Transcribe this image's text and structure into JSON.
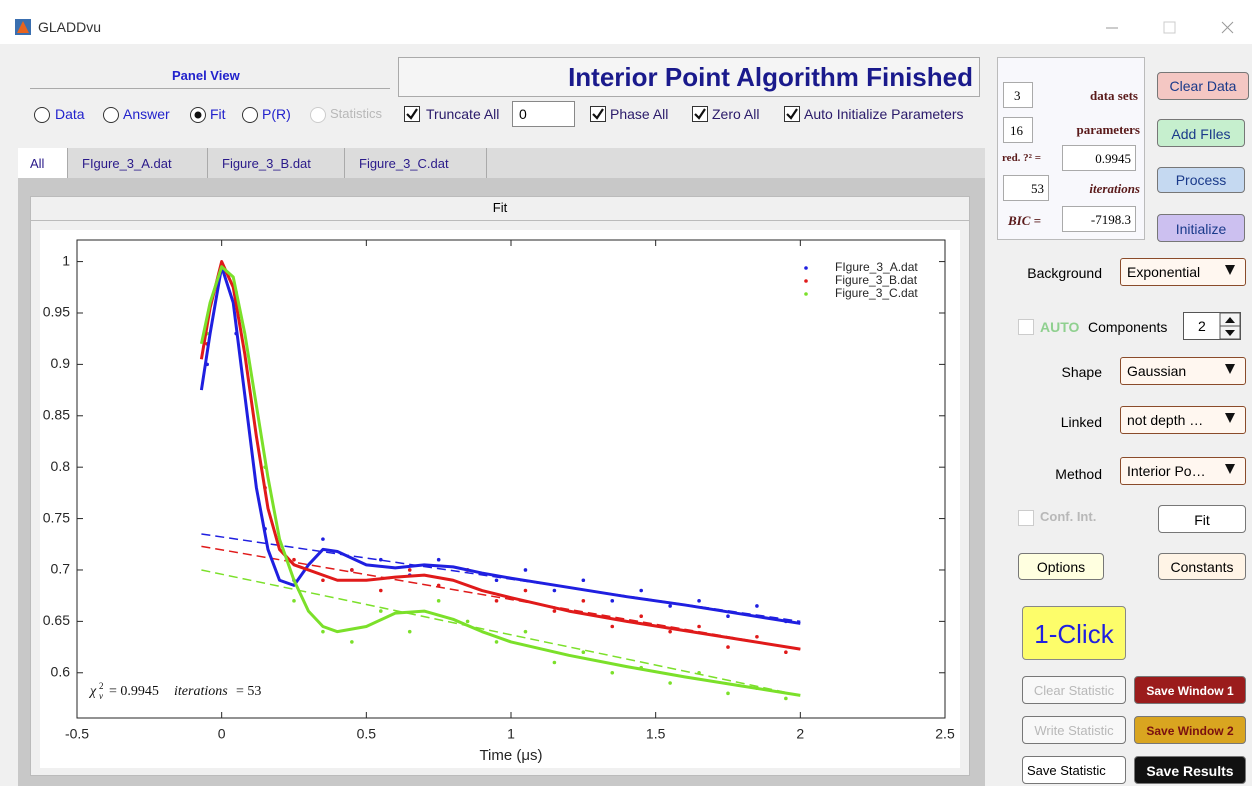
{
  "window": {
    "title": "GLADDvu"
  },
  "panel_view": {
    "title": "Panel View",
    "options": [
      {
        "label": "Data",
        "selected": false,
        "enabled": true
      },
      {
        "label": "Answer",
        "selected": false,
        "enabled": true
      },
      {
        "label": "Fit",
        "selected": true,
        "enabled": true
      },
      {
        "label": "P(R)",
        "selected": false,
        "enabled": true
      },
      {
        "label": "Statistics",
        "selected": false,
        "enabled": false
      }
    ]
  },
  "status": "Interior Point Algorithm Finished",
  "options_row": {
    "truncate": {
      "label": "Truncate All",
      "checked": true
    },
    "truncate_value": "0",
    "phase": {
      "label": "Phase All",
      "checked": true
    },
    "zero": {
      "label": "Zero All",
      "checked": true
    },
    "auto_init": {
      "label": "Auto Initialize Parameters",
      "checked": true
    }
  },
  "tabs": {
    "items": [
      "All",
      "FIgure_3_A.dat",
      "Figure_3_B.dat",
      "Figure_3_C.dat"
    ],
    "active": 0
  },
  "panel_title": "Fit",
  "stats": {
    "data_sets": {
      "value": "3",
      "label": "data sets"
    },
    "parameters": {
      "value": "16",
      "label": "parameters"
    },
    "red_chi2": {
      "label": "red. ?² =",
      "value": "0.9945"
    },
    "iterations": {
      "value": "53",
      "label": "iterations"
    },
    "bic": {
      "label": "BIC =",
      "value": "-7198.3"
    }
  },
  "buttons": {
    "clear_data": {
      "label": "Clear Data",
      "enabled": true
    },
    "add_files": {
      "label": "Add FIles",
      "enabled": true
    },
    "process": {
      "label": "Process",
      "enabled": true
    },
    "initialize": {
      "label": "Initialize",
      "enabled": true
    },
    "fit": {
      "label": "Fit",
      "enabled": true
    },
    "options": {
      "label": "Options",
      "enabled": true
    },
    "constants": {
      "label": "Constants",
      "enabled": true
    },
    "one_click": {
      "label": "1-Click",
      "enabled": true
    },
    "clear_statistic": {
      "label": "Clear Statistic",
      "enabled": false
    },
    "save_window_1": {
      "label": "Save Window 1",
      "enabled": true
    },
    "write_statistic": {
      "label": "Write Statistic",
      "enabled": false
    },
    "save_window_2": {
      "label": "Save Window 2",
      "enabled": true
    },
    "save_statistic": {
      "label": "Save Statistic",
      "enabled": true
    },
    "save_results": {
      "label": "Save Results",
      "enabled": true
    }
  },
  "controls": {
    "background": {
      "label": "Background",
      "value": "Exponential"
    },
    "auto": {
      "label": "AUTO",
      "checked": false
    },
    "components": {
      "label": "Components",
      "value": 2
    },
    "shape": {
      "label": "Shape",
      "value": "Gaussian"
    },
    "linked": {
      "label": "Linked",
      "value": "not depth …"
    },
    "method": {
      "label": "Method",
      "value": "Interior Po…"
    },
    "conf_int": {
      "label": "Conf. Int.",
      "checked": false
    }
  },
  "chart_data": {
    "type": "line",
    "xlabel": "Time (μs)",
    "legend": "upper right",
    "grid": false,
    "xlim": [
      -0.5,
      2.5
    ],
    "xticks": [
      -0.5,
      0,
      0.5,
      1,
      1.5,
      2,
      2.5
    ],
    "ylim": [
      0.556,
      1.021
    ],
    "yticks": [
      0.6,
      0.65,
      0.7,
      0.75,
      0.8,
      0.85,
      0.9,
      0.95,
      1
    ],
    "x": [
      -0.05,
      0.05,
      0.15,
      0.25,
      0.35,
      0.45,
      0.55,
      0.65,
      0.75,
      0.85,
      0.95,
      1.05,
      1.15,
      1.25,
      1.35,
      1.45,
      1.55,
      1.65,
      1.75,
      1.85,
      1.95
    ],
    "fit_x": [
      -0.07,
      -0.04,
      0,
      0.04,
      0.08,
      0.12,
      0.16,
      0.2,
      0.25,
      0.3,
      0.35,
      0.4,
      0.5,
      0.6,
      0.7,
      0.8,
      0.9,
      1.0,
      1.2,
      1.4,
      1.6,
      1.8,
      2.0
    ],
    "baseline_x": [
      -0.07,
      2.0
    ],
    "series": [
      {
        "name": "FIgure_3_A.dat",
        "color": "#1f1fe0",
        "values": [
          0.9,
          0.93,
          0.74,
          0.69,
          0.73,
          0.7,
          0.71,
          0.695,
          0.71,
          0.7,
          0.69,
          0.7,
          0.68,
          0.69,
          0.67,
          0.68,
          0.665,
          0.67,
          0.655,
          0.665,
          0.65
        ],
        "fit_values": [
          0.875,
          0.93,
          0.995,
          0.96,
          0.87,
          0.78,
          0.72,
          0.69,
          0.685,
          0.705,
          0.72,
          0.718,
          0.705,
          0.702,
          0.705,
          0.703,
          0.697,
          0.692,
          0.683,
          0.674,
          0.666,
          0.657,
          0.648
        ],
        "baseline_values": [
          0.735,
          0.65
        ]
      },
      {
        "name": "Figure_3_B.dat",
        "color": "#e01a1a",
        "values": [
          0.92,
          0.96,
          0.78,
          0.71,
          0.69,
          0.7,
          0.68,
          0.7,
          0.685,
          0.7,
          0.67,
          0.68,
          0.66,
          0.67,
          0.645,
          0.655,
          0.64,
          0.645,
          0.625,
          0.635,
          0.62
        ],
        "fit_values": [
          0.905,
          0.955,
          1.0,
          0.975,
          0.91,
          0.83,
          0.76,
          0.72,
          0.705,
          0.7,
          0.695,
          0.69,
          0.69,
          0.693,
          0.695,
          0.69,
          0.68,
          0.673,
          0.66,
          0.65,
          0.641,
          0.632,
          0.623
        ],
        "baseline_values": [
          0.723,
          0.623
        ]
      },
      {
        "name": "Figure_3_C.dat",
        "color": "#7be02a",
        "values": [
          0.93,
          0.97,
          0.8,
          0.67,
          0.64,
          0.63,
          0.66,
          0.64,
          0.67,
          0.65,
          0.63,
          0.64,
          0.61,
          0.62,
          0.6,
          0.605,
          0.59,
          0.6,
          0.58,
          0.585,
          0.575
        ],
        "fit_values": [
          0.92,
          0.96,
          0.995,
          0.985,
          0.93,
          0.86,
          0.79,
          0.73,
          0.69,
          0.66,
          0.645,
          0.64,
          0.645,
          0.658,
          0.66,
          0.652,
          0.64,
          0.63,
          0.617,
          0.606,
          0.596,
          0.587,
          0.578
        ],
        "baseline_values": [
          0.7,
          0.578
        ]
      }
    ],
    "annotation": {
      "symbol": "χ",
      "superscript": "2",
      "subscript": "ν",
      "text": "= 0.9945",
      "iterations_label": "iterations",
      "iterations_text": "= 53"
    }
  }
}
